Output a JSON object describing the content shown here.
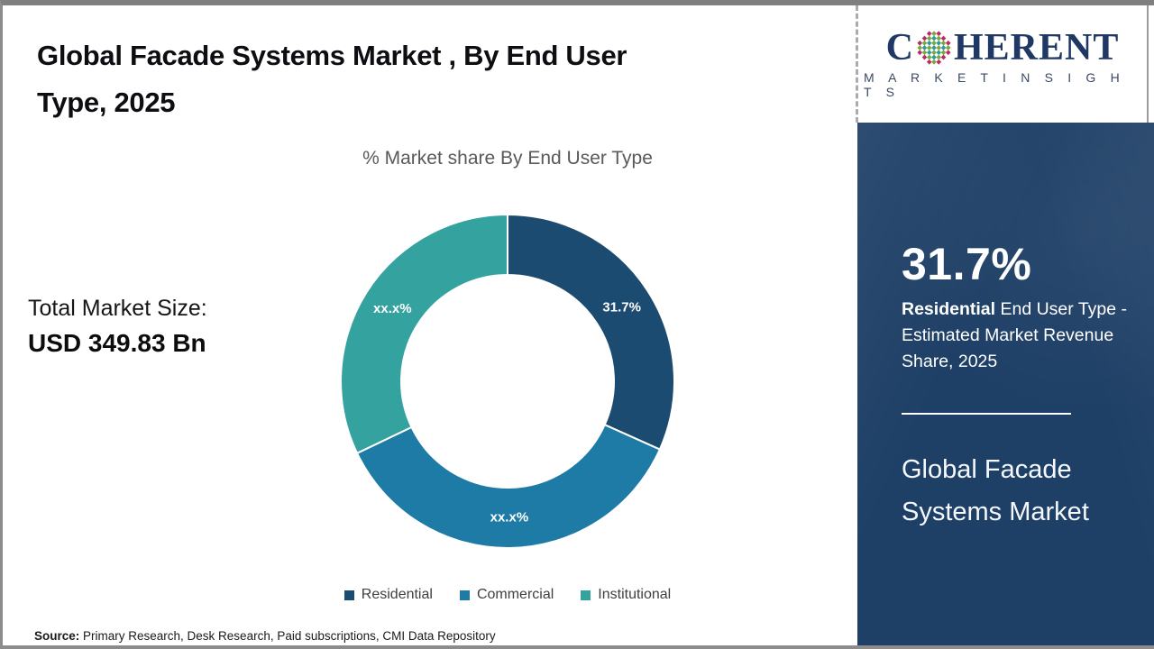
{
  "header": {
    "title_line1": "Global Facade Systems Market , By End User",
    "title_line2": "Type, 2025"
  },
  "stats": {
    "total_label": "Total Market Size:",
    "total_value": "USD 349.83 Bn"
  },
  "chart_data": {
    "type": "pie",
    "subtype": "donut",
    "title": "% Market share By End User Type",
    "start_angle_deg": 0,
    "direction": "clockwise",
    "legend_position": "bottom",
    "segments": [
      {
        "label": "Residential",
        "value": 31.7,
        "display": "31.7%",
        "color": "#1c4b71"
      },
      {
        "label": "Commercial",
        "value": 36.2,
        "display": "xx.x%",
        "color": "#1e7ba6"
      },
      {
        "label": "Institutional",
        "value": 32.1,
        "display": "xx.x%",
        "color": "#34a3a0"
      }
    ]
  },
  "source": {
    "label": "Source:",
    "text": " Primary Research, Desk Research, Paid subscriptions, CMI Data Repository"
  },
  "sidebar": {
    "logo": {
      "brand_first_letter": "C",
      "brand_rest": "HERENT",
      "brand_sub": "M A R K E T   I N S I G H T S",
      "brand_navy": "#1f3864",
      "globe_colors": [
        "#2f9b94",
        "#7aa83d",
        "#bb2a66"
      ]
    },
    "panel_color": "#1e3f66",
    "highlight_value": "31.7%",
    "highlight_bold": "Residential",
    "highlight_text": " End User Type - Estimated Market Revenue Share, 2025",
    "report_title": "Global Facade Systems Market"
  }
}
